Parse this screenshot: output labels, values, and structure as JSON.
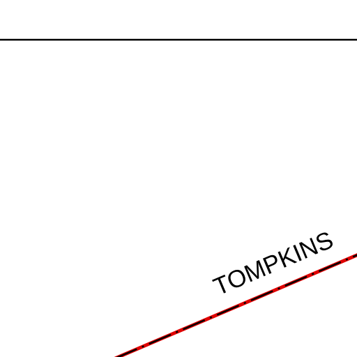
{
  "map": {
    "labels": [
      "TOMPKINS"
    ]
  }
}
